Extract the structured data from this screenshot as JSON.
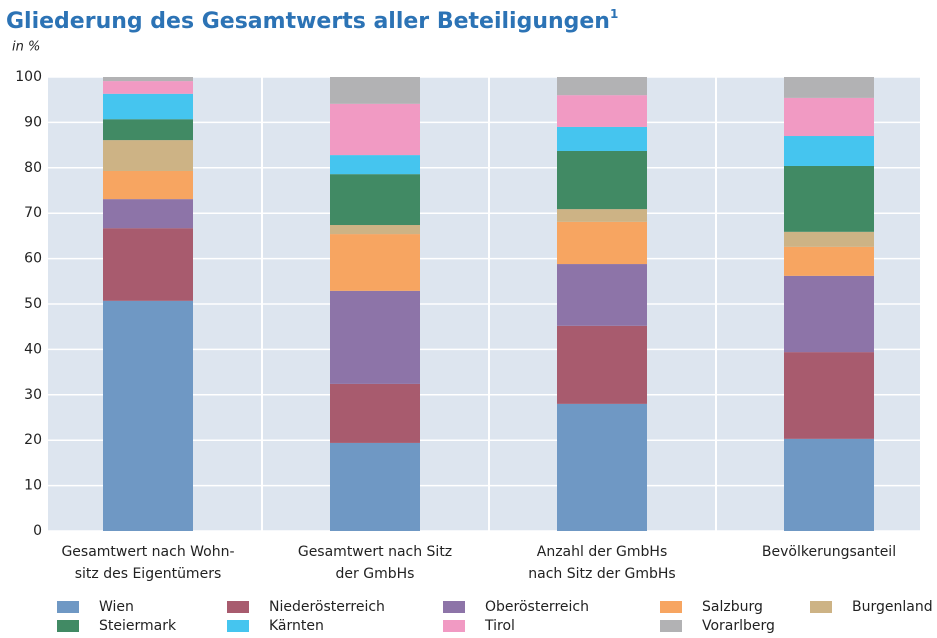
{
  "chart_data": {
    "type": "stacked_bar",
    "title": "Gliederung des Gesamtwerts aller Beteiligungen",
    "title_footnote": "1",
    "subtitle": "in %",
    "categories": [
      [
        "Gesamtwert nach Wohn-",
        "sitz des Eigentümers"
      ],
      [
        "Gesamtwert nach Sitz",
        "der GmbHs"
      ],
      [
        "Anzahl der GmbHs",
        "nach Sitz der GmbHs"
      ],
      [
        "Bevölkerungsanteil"
      ]
    ],
    "series": [
      {
        "name": "Wien",
        "color": "#6f98c4",
        "values": [
          50.7,
          19.4,
          28.0,
          20.3
        ]
      },
      {
        "name": "Niederösterreich",
        "color": "#a85b6e",
        "values": [
          16.0,
          13.0,
          17.2,
          19.1
        ]
      },
      {
        "name": "Oberösterreich",
        "color": "#8d74a8",
        "values": [
          6.4,
          20.5,
          13.6,
          16.8
        ]
      },
      {
        "name": "Salzburg",
        "color": "#f7a561",
        "values": [
          6.2,
          12.5,
          9.3,
          6.4
        ]
      },
      {
        "name": "Burgenland",
        "color": "#cdb385",
        "values": [
          6.8,
          2.0,
          2.8,
          3.3
        ]
      },
      {
        "name": "Steiermark",
        "color": "#418a64",
        "values": [
          4.6,
          11.2,
          12.8,
          14.5
        ]
      },
      {
        "name": "Kärnten",
        "color": "#45c5ef",
        "values": [
          5.6,
          4.2,
          5.3,
          6.6
        ]
      },
      {
        "name": "Tirol",
        "color": "#f19ac3",
        "values": [
          2.8,
          11.3,
          7.0,
          8.4
        ]
      },
      {
        "name": "Vorarlberg",
        "color": "#b2b2b4",
        "values": [
          0.9,
          5.9,
          4.0,
          4.6
        ]
      }
    ],
    "ylim": [
      0,
      100
    ],
    "yticks": [
      0,
      10,
      20,
      30,
      40,
      50,
      60,
      70,
      80,
      90,
      100
    ],
    "grid": true
  }
}
